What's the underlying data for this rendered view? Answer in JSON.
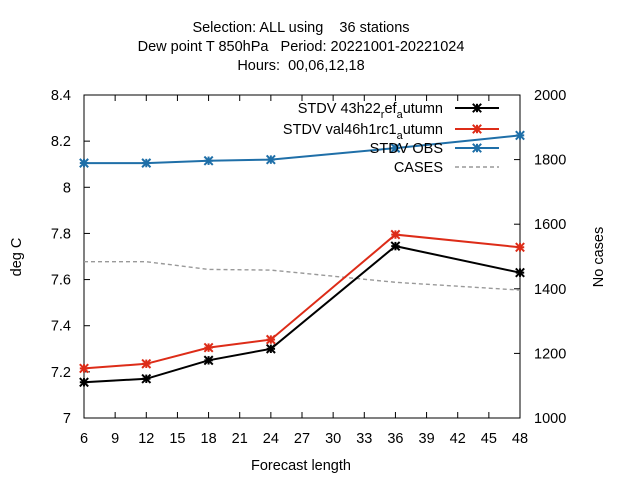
{
  "chart_data": {
    "type": "line",
    "title_lines": [
      "Selection: ALL using    36 stations",
      "Dew point T 850hPa   Period: 20221001-20221024",
      "Hours:  00,06,12,18"
    ],
    "xlabel": "Forecast length",
    "ylabel": "deg C",
    "y2label": "No cases",
    "x_ticks": [
      "6",
      "9",
      "12",
      "15",
      "18",
      "21",
      "24",
      "27",
      "30",
      "33",
      "36",
      "39",
      "42",
      "45",
      "48"
    ],
    "y_ticks": [
      "7",
      "7.2",
      "7.4",
      "7.6",
      "7.8",
      "8",
      "8.2",
      "8.4"
    ],
    "y2_ticks": [
      "1000",
      "1200",
      "1400",
      "1600",
      "1800",
      "2000"
    ],
    "xlim": [
      6,
      48
    ],
    "ylim": [
      7,
      8.4
    ],
    "y2lim": [
      1000,
      2000
    ],
    "grid": false,
    "legend_position": "top-right",
    "x": [
      6,
      12,
      18,
      24,
      36,
      48
    ],
    "series": [
      {
        "name": "STDV 43h22_ref_autumn",
        "legend_main": "STDV 43h22",
        "legend_sub1": "r",
        "legend_mid": "ef",
        "legend_sub2": "a",
        "legend_tail": "utumn",
        "axis": "y",
        "color": "#000000",
        "values": [
          7.155,
          7.17,
          7.25,
          7.3,
          7.745,
          7.63
        ]
      },
      {
        "name": "STDV val46h1rc1_autumn",
        "legend_main": "STDV val46h1rc1",
        "legend_sub1": "",
        "legend_mid": "",
        "legend_sub2": "a",
        "legend_tail": "utumn",
        "axis": "y",
        "color": "#dd2c18",
        "values": [
          7.215,
          7.235,
          7.305,
          7.34,
          7.795,
          7.74
        ]
      },
      {
        "name": "STDV OBS",
        "legend_main": "STDV OBS",
        "legend_sub1": "",
        "legend_mid": "",
        "legend_sub2": "",
        "legend_tail": "",
        "axis": "y",
        "color": "#1f6fa8",
        "values": [
          8.105,
          8.105,
          8.115,
          8.12,
          8.17,
          8.225
        ]
      },
      {
        "name": "CASES",
        "legend_main": "CASES",
        "legend_sub1": "",
        "legend_mid": "",
        "legend_sub2": "",
        "legend_tail": "",
        "axis": "y2",
        "color": "#999999",
        "dashed": true,
        "values": [
          1484,
          1484,
          1460,
          1458,
          1420,
          1396
        ]
      }
    ]
  }
}
